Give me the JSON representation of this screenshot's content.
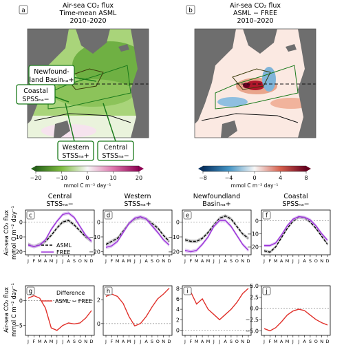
{
  "maps": {
    "a": {
      "letter": "a",
      "title_lines": [
        "Air-sea CO₂ flux",
        "Time-mean ASML",
        "2010–2020"
      ]
    },
    "b": {
      "letter": "b",
      "title_lines": [
        "Air-sea CO₂ flux",
        "ASML − FREE",
        "2010–2020"
      ]
    },
    "region_labels": {
      "newfoundland": [
        "Newfound-",
        "land Basinₙₐ+"
      ],
      "coastal": [
        "Coastal",
        "SPSSₙₐ−"
      ],
      "western": [
        "Western",
        "STSSₙₐ+"
      ],
      "central": [
        "Central",
        "STSSₙₐ−"
      ]
    },
    "colorbar_a": {
      "ticks": [
        "−20",
        "−10",
        "0",
        "10",
        "20"
      ],
      "label": "mmol C m⁻² day⁻¹",
      "colors": [
        "#276419",
        "#7fbc41",
        "#f7f7f7",
        "#de77ae",
        "#8e0152"
      ]
    },
    "colorbar_b": {
      "ticks": [
        "−8",
        "−4",
        "0",
        "4",
        "8"
      ],
      "label": "mmol C m⁻² day⁻¹",
      "colors": [
        "#053061",
        "#4393c3",
        "#f7f7f7",
        "#d6604d",
        "#67001f"
      ]
    }
  },
  "row_labels": {
    "top": [
      "Air-sea CO₂ flux",
      "mmol C m⁻² day⁻¹"
    ],
    "bottom": [
      "Air-sea CO₂ flux",
      "mmol C m⁻² day⁻¹"
    ]
  },
  "months": [
    "J",
    "F",
    "M",
    "A",
    "M",
    "J",
    "J",
    "A",
    "S",
    "O",
    "N",
    "D"
  ],
  "legend_top": {
    "asml": "ASML",
    "free": "FREE"
  },
  "legend_bottom": {
    "title": "Difference",
    "entry": "ASML − FREE"
  },
  "colors": {
    "asml": "#000000",
    "free": "#9b30d9",
    "free_band": "#d6b3ef",
    "asml_band": "#b0b0b0",
    "diff": "#e0302a"
  },
  "chart_data": [
    {
      "panel": "c",
      "type": "line",
      "title_lines": [
        "Central",
        "STSSₙₐ−"
      ],
      "ylim": [
        -22,
        8
      ],
      "yticks": [
        -20,
        -10,
        0
      ],
      "x": [
        "J",
        "F",
        "M",
        "A",
        "M",
        "J",
        "J",
        "A",
        "S",
        "O",
        "N",
        "D"
      ],
      "series": [
        {
          "name": "ASML",
          "values": [
            -15,
            -16.5,
            -15,
            -13,
            -9,
            -4,
            0,
            1,
            -2,
            -6,
            -10,
            -13
          ]
        },
        {
          "name": "FREE",
          "values": [
            -15.5,
            -16.5,
            -15.5,
            -12,
            -5,
            0.5,
            5,
            6,
            3,
            -3,
            -9,
            -13
          ]
        }
      ]
    },
    {
      "panel": "d",
      "type": "line",
      "title_lines": [
        "Western",
        "STSSₙₐ+"
      ],
      "ylim": [
        -22,
        8
      ],
      "yticks": [
        -20,
        -10,
        0
      ],
      "x": [
        "J",
        "F",
        "M",
        "A",
        "M",
        "J",
        "J",
        "A",
        "S",
        "O",
        "N",
        "D"
      ],
      "series": [
        {
          "name": "ASML",
          "values": [
            -15,
            -13,
            -11,
            -6,
            -1,
            2,
            3,
            2,
            -1,
            -4,
            -9,
            -13
          ]
        },
        {
          "name": "FREE",
          "values": [
            -17,
            -16,
            -13,
            -7,
            -1,
            2.5,
            3.5,
            2,
            -2.5,
            -7,
            -12,
            -15.5
          ]
        }
      ]
    },
    {
      "panel": "e",
      "type": "line",
      "title_lines": [
        "Newfoundland",
        "Basinₙₐ+"
      ],
      "ylim": [
        -22,
        8
      ],
      "yticks": [
        -20,
        -10,
        0
      ],
      "x": [
        "J",
        "F",
        "M",
        "A",
        "M",
        "J",
        "J",
        "A",
        "S",
        "O",
        "N",
        "D"
      ],
      "series": [
        {
          "name": "ASML",
          "values": [
            -12,
            -13,
            -13,
            -11,
            -7,
            -2,
            2.5,
            4,
            2,
            -3,
            -8,
            -11
          ]
        },
        {
          "name": "FREE",
          "values": [
            -19,
            -20,
            -19,
            -15,
            -10,
            -3,
            1,
            1,
            -3,
            -9,
            -15,
            -19
          ]
        }
      ]
    },
    {
      "panel": "f",
      "type": "line",
      "title_lines": [
        "Coastal",
        "SPSSₙₐ−"
      ],
      "ylim": [
        -26,
        8
      ],
      "yticks": [
        -20,
        -10,
        0
      ],
      "x": [
        "J",
        "F",
        "M",
        "A",
        "M",
        "J",
        "J",
        "A",
        "S",
        "O",
        "N",
        "D"
      ],
      "series": [
        {
          "name": "ASML",
          "values": [
            -23,
            -24,
            -20,
            -13,
            -6,
            -0.5,
            2.5,
            2,
            -1,
            -6,
            -12,
            -18
          ]
        },
        {
          "name": "FREE",
          "values": [
            -19,
            -19,
            -17,
            -11,
            -4,
            1,
            3,
            2.5,
            0.5,
            -4,
            -10,
            -15
          ]
        }
      ]
    },
    {
      "panel": "g",
      "type": "line",
      "ylim": [
        -7,
        3
      ],
      "yticks": [
        -5,
        0
      ],
      "x": [
        "J",
        "F",
        "M",
        "A",
        "M",
        "J",
        "J",
        "A",
        "S",
        "O",
        "N",
        "D"
      ],
      "series": [
        {
          "name": "ASML − FREE",
          "values": [
            0.5,
            1,
            0.5,
            -1.5,
            -5.5,
            -6,
            -5,
            -4.5,
            -4.7,
            -4.5,
            -3.5,
            -2
          ]
        }
      ]
    },
    {
      "panel": "h",
      "type": "line",
      "ylim": [
        -1,
        3.2
      ],
      "yticks": [
        0,
        2
      ],
      "x": [
        "J",
        "F",
        "M",
        "A",
        "M",
        "J",
        "J",
        "A",
        "S",
        "O",
        "N",
        "D"
      ],
      "series": [
        {
          "name": "ASML − FREE",
          "values": [
            2.3,
            2.5,
            2.3,
            1.7,
            0.6,
            -0.2,
            0,
            0.6,
            1.4,
            2.1,
            2.5,
            3
          ]
        }
      ]
    },
    {
      "panel": "i",
      "type": "line",
      "ylim": [
        -1,
        8.5
      ],
      "yticks": [
        0,
        2,
        4,
        6,
        8
      ],
      "x": [
        "J",
        "F",
        "M",
        "A",
        "M",
        "J",
        "J",
        "A",
        "S",
        "O",
        "N",
        "D"
      ],
      "series": [
        {
          "name": "ASML − FREE",
          "values": [
            7.5,
            7.3,
            5,
            6,
            4,
            3,
            2,
            3,
            4,
            5.3,
            7,
            8
          ]
        }
      ]
    },
    {
      "panel": "j",
      "type": "line",
      "ylim": [
        -6,
        5
      ],
      "yticks": [
        -5,
        -2.5,
        0,
        2.5,
        5
      ],
      "ytick_labels": [
        "−5.0",
        "−2.5",
        "0.0",
        "2.5",
        "5.0"
      ],
      "x": [
        "J",
        "F",
        "M",
        "A",
        "M",
        "J",
        "J",
        "A",
        "S",
        "O",
        "N",
        "D"
      ],
      "series": [
        {
          "name": "ASML − FREE",
          "values": [
            -4.5,
            -5,
            -4.3,
            -3,
            -1.5,
            -0.6,
            -0.2,
            -0.5,
            -1.5,
            -2.5,
            -3.2,
            -3.7
          ]
        }
      ]
    }
  ]
}
